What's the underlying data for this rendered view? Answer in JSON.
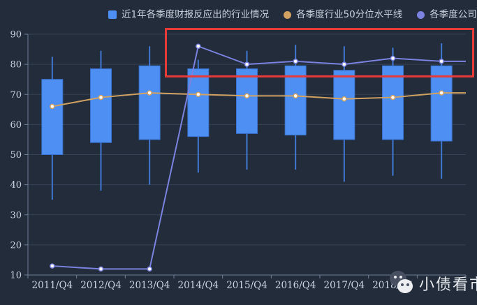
{
  "legend": {
    "items": [
      {
        "label": "近1年各季度财报反应出的行业情况",
        "marker": "square",
        "color": "#4d8ff2"
      },
      {
        "label": "各季度行业50分位水平线",
        "marker": "circle",
        "color": "#d2a262"
      },
      {
        "label": "各季度公司数值",
        "marker": "circle",
        "color": "#7b82e0"
      }
    ]
  },
  "chart_data": {
    "type": "candlestick+line",
    "categories": [
      "2011/Q4",
      "2012/Q4",
      "2013/Q4",
      "2014/Q4",
      "2015/Q4",
      "2016/Q4",
      "2017/Q4",
      "2018/Q4",
      ""
    ],
    "y_axis": {
      "min": 10,
      "max": 90,
      "ticks": [
        90,
        80,
        70,
        60,
        50,
        40,
        30,
        20,
        10
      ]
    },
    "grid": true,
    "legend_position": "top",
    "series": [
      {
        "name": "近1年各季度财报反应出的行业情况",
        "type": "candlestick",
        "color": "#4d8ff2",
        "border_color": "#3a73cf",
        "whisker_color": "#3f77d2",
        "values_format": "[low, boxBottom, boxTop, high]",
        "values": [
          [
            35,
            50,
            75,
            82.5
          ],
          [
            38,
            54,
            78.5,
            84.5
          ],
          [
            40,
            55,
            79.5,
            86
          ],
          [
            44,
            56,
            78.5,
            81.5
          ],
          [
            45,
            57,
            78.5,
            84.5
          ],
          [
            45,
            56.5,
            79.5,
            86.5
          ],
          [
            41,
            55,
            78,
            86
          ],
          [
            43,
            55,
            79.5,
            85.5
          ],
          [
            42,
            54.5,
            79.5,
            87
          ]
        ]
      },
      {
        "name": "各季度行业50分位水平线",
        "type": "line",
        "color": "#d2a262",
        "values": [
          66,
          69,
          70.5,
          70,
          69.5,
          69.5,
          68.5,
          69,
          70.5
        ]
      },
      {
        "name": "各季度公司数值",
        "type": "line",
        "color": "#7b82e0",
        "values": [
          13,
          12,
          12,
          86,
          80,
          81,
          80,
          82,
          81
        ]
      }
    ],
    "annotation": {
      "shape": "rectangle",
      "color": "#e93a3a"
    }
  },
  "watermark": {
    "text": "小债看市",
    "icon": "wechat-icon"
  },
  "colors": {
    "background": "#222c3a",
    "grid_line": "rgba(125,145,180,0.22)",
    "axis_line": "#6e7b94",
    "axis_text": "#ccd4e2"
  }
}
